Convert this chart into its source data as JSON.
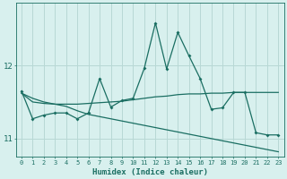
{
  "xlabel": "Humidex (Indice chaleur)",
  "background_color": "#d8f0ee",
  "grid_color": "#b8d8d5",
  "line_color": "#1a6e62",
  "x_values": [
    0,
    1,
    2,
    3,
    4,
    5,
    6,
    7,
    8,
    9,
    10,
    11,
    12,
    13,
    14,
    15,
    16,
    17,
    18,
    19,
    20,
    21,
    22,
    23
  ],
  "y_main": [
    11.65,
    11.27,
    11.32,
    11.35,
    11.35,
    11.27,
    11.35,
    11.82,
    11.43,
    11.52,
    11.55,
    11.96,
    12.58,
    11.95,
    12.45,
    12.13,
    11.82,
    11.4,
    11.42,
    11.63,
    11.63,
    11.08,
    11.05,
    11.05
  ],
  "y_trend1": [
    11.62,
    11.5,
    11.48,
    11.47,
    11.47,
    11.47,
    11.48,
    11.49,
    11.5,
    11.51,
    11.53,
    11.55,
    11.57,
    11.58,
    11.6,
    11.61,
    11.61,
    11.62,
    11.62,
    11.63,
    11.63,
    11.63,
    11.63,
    11.63
  ],
  "y_trend2": [
    11.62,
    11.55,
    11.5,
    11.47,
    11.44,
    11.38,
    11.33,
    11.3,
    11.27,
    11.24,
    11.21,
    11.18,
    11.15,
    11.12,
    11.09,
    11.06,
    11.03,
    11.0,
    10.97,
    10.94,
    10.91,
    10.88,
    10.85,
    10.82
  ],
  "ylim": [
    10.75,
    12.85
  ],
  "xlim": [
    -0.5,
    23.5
  ],
  "yticks": [
    11,
    12
  ],
  "xticks": [
    0,
    1,
    2,
    3,
    4,
    5,
    6,
    7,
    8,
    9,
    10,
    11,
    12,
    13,
    14,
    15,
    16,
    17,
    18,
    19,
    20,
    21,
    22,
    23
  ]
}
